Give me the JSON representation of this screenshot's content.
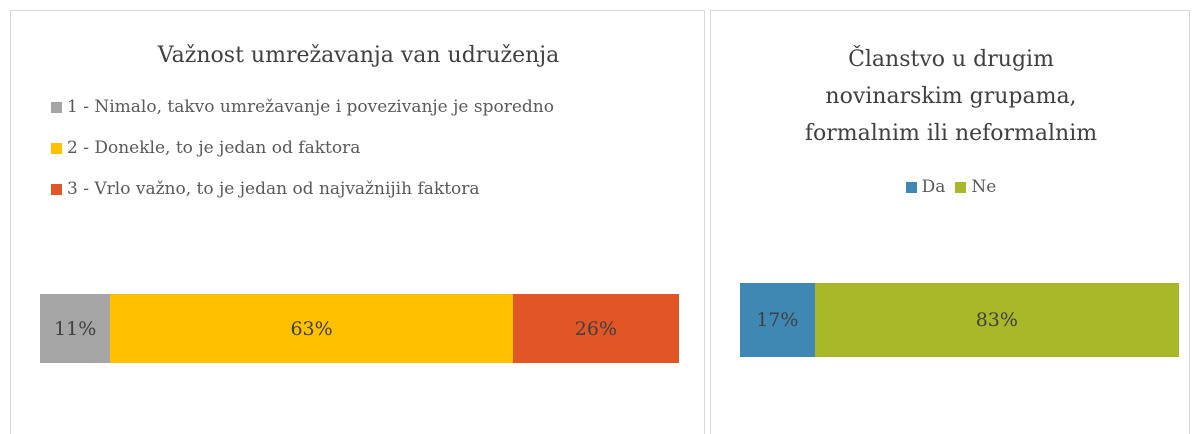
{
  "chart_data": [
    {
      "type": "stacked-bar",
      "orientation": "horizontal",
      "title": "Važnost umrežavanja van udruženja",
      "categories": [
        null
      ],
      "xlim": [
        0,
        100
      ],
      "legend": "top",
      "series": [
        {
          "name": "1 - Nimalo, takvo umrežavanje i povezivanje je sporedno",
          "color": "#a5a5a5",
          "values": [
            11
          ],
          "value_labels": [
            "11%"
          ]
        },
        {
          "name": "2 - Donekle, to je jedan od faktora",
          "color": "#ffc000",
          "values": [
            63
          ],
          "value_labels": [
            "63%"
          ]
        },
        {
          "name": "3 - Vrlo važno, to je jedan od najvažnijih faktora",
          "color": "#e15527",
          "values": [
            26
          ],
          "value_labels": [
            "26%"
          ]
        }
      ]
    },
    {
      "type": "stacked-bar",
      "orientation": "horizontal",
      "title": "Članstvo u drugim novinarskim grupama, formalnim ili neformalnim",
      "categories": [
        null
      ],
      "xlim": [
        0,
        100
      ],
      "legend": "top",
      "series": [
        {
          "name": "Da",
          "color": "#3f88b4",
          "values": [
            17
          ],
          "value_labels": [
            "17%"
          ]
        },
        {
          "name": "Ne",
          "color": "#a8b829",
          "values": [
            83
          ],
          "value_labels": [
            "83%"
          ]
        }
      ]
    }
  ]
}
